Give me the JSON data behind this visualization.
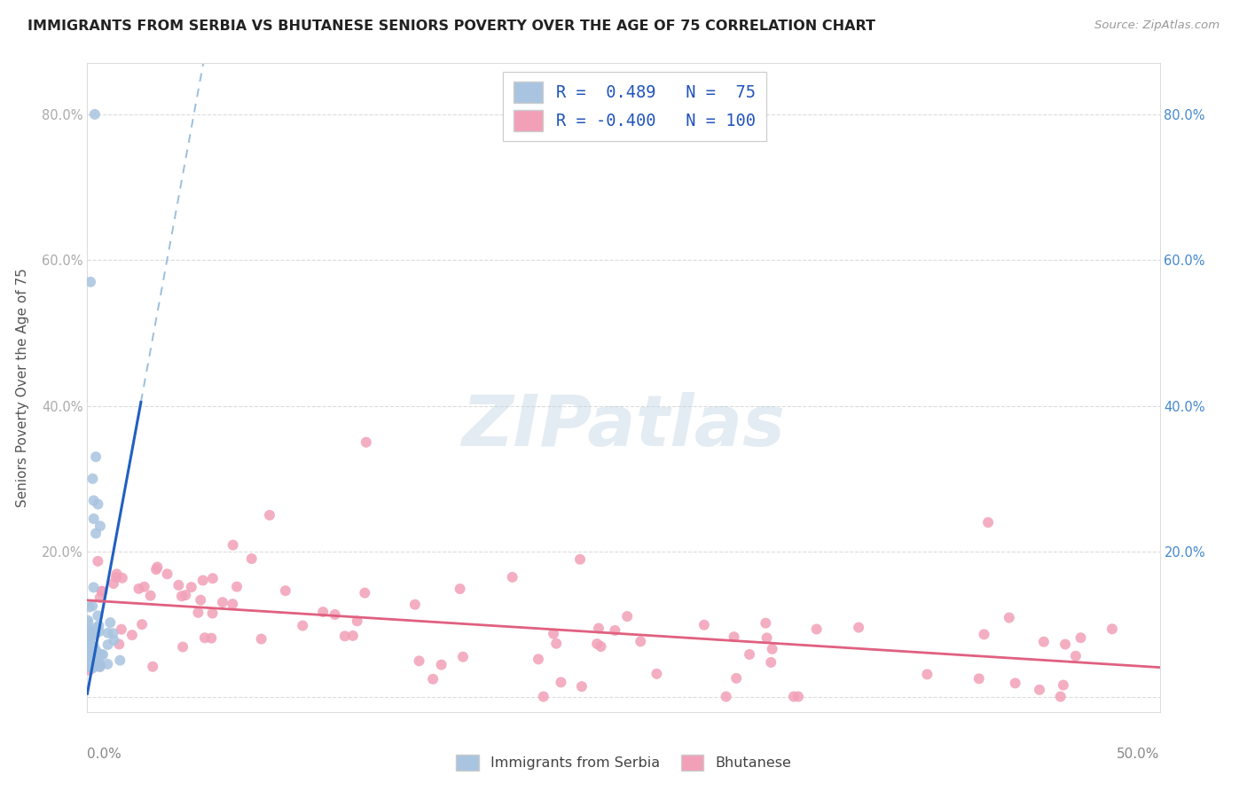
{
  "title": "IMMIGRANTS FROM SERBIA VS BHUTANESE SENIORS POVERTY OVER THE AGE OF 75 CORRELATION CHART",
  "source": "Source: ZipAtlas.com",
  "ylabel": "Seniors Poverty Over the Age of 75",
  "serbia_R": 0.489,
  "serbia_N": 75,
  "bhutan_R": -0.4,
  "bhutan_N": 100,
  "serbia_color": "#a8c4e0",
  "bhutan_color": "#f2a0b8",
  "serbia_line_color": "#2060c0",
  "bhutan_line_color": "#e06080",
  "dash_line_color": "#90b8d8",
  "xlim": [
    0.0,
    0.5
  ],
  "ylim": [
    -0.02,
    0.87
  ],
  "ytick_vals": [
    0.0,
    0.2,
    0.4,
    0.6,
    0.8
  ],
  "watermark_text": "ZIPatlas",
  "background_color": "#ffffff",
  "grid_color": "#d8d8d8",
  "serbia_legend_label": "R =  0.489   N =  75",
  "bhutan_legend_label": "R = -0.400   N = 100",
  "bottom_legend_serbia": "Immigrants from Serbia",
  "bottom_legend_bhutan": "Bhutanese"
}
